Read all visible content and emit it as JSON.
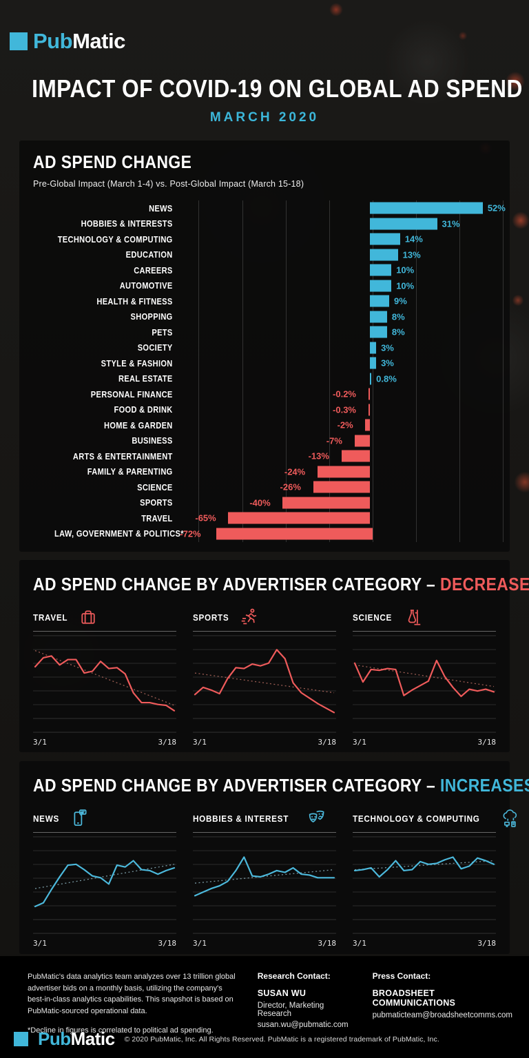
{
  "brand": {
    "pub": "Pub",
    "matic": "Matic"
  },
  "header": {
    "title": "IMPACT OF COVID-19 ON GLOBAL AD SPEND",
    "subtitle": "MARCH 2020"
  },
  "colors": {
    "accent_cyan": "#41b7da",
    "accent_red": "#ef5b5b"
  },
  "bar_section": {
    "title": "AD SPEND CHANGE",
    "subtitle": "Pre-Global Impact (March 1-4) vs. Post-Global Impact (March 15-18)"
  },
  "decreases_section": {
    "title_prefix": "AD SPEND CHANGE BY ADVERTISER CATEGORY –",
    "title_highlight": "DECREASES"
  },
  "increases_section": {
    "title_prefix": "AD SPEND CHANGE BY ADVERTISER CATEGORY –",
    "title_highlight": "INCREASES"
  },
  "chart_data": [
    {
      "type": "bar",
      "orientation": "horizontal",
      "title": "AD SPEND CHANGE",
      "subtitle": "Pre-Global Impact (March 1-4) vs. Post-Global Impact (March 15-18)",
      "unit": "percent change",
      "xlim": [
        -88,
        68
      ],
      "gridlines": [
        -80,
        -60,
        -40,
        -20,
        0,
        20,
        40,
        60
      ],
      "grid": true,
      "categories": [
        "NEWS",
        "HOBBIES & INTERESTS",
        "TECHNOLOGY & COMPUTING",
        "EDUCATION",
        "CAREERS",
        "AUTOMOTIVE",
        "HEALTH & FITNESS",
        "SHOPPING",
        "PETS",
        "SOCIETY",
        "STYLE & FASHION",
        "REAL ESTATE",
        "PERSONAL FINANCE",
        "FOOD & DRINK",
        "HOME & GARDEN",
        "BUSINESS",
        "ARTS & ENTERTAINMENT",
        "FAMILY & PARENTING",
        "SCIENCE",
        "SPORTS",
        "TRAVEL",
        "LAW, GOVERNMENT & POLITICS*"
      ],
      "values": [
        52,
        31,
        14,
        13,
        10,
        10,
        9,
        8,
        8,
        3,
        3,
        0.8,
        -0.2,
        -0.3,
        -2,
        -7,
        -13,
        -24,
        -26,
        -40,
        -65,
        -72
      ],
      "labels": [
        "52%",
        "31%",
        "14%",
        "13%",
        "10%",
        "10%",
        "9%",
        "8%",
        "8%",
        "3%",
        "3%",
        "0.8%",
        "-0.2%",
        "-0.3%",
        "-2%",
        "-7%",
        "-13%",
        "-24%",
        "-26%",
        "-40%",
        "-65%",
        "-72%"
      ],
      "positive_color": "#41b7da",
      "negative_color": "#ef5b5b"
    },
    {
      "type": "line",
      "title": "TRAVEL",
      "group": "decreases",
      "color": "#ef5b5b",
      "trend_color": "#d07a6d",
      "x_start": "3/1",
      "x_end": "3/18",
      "ylim": [
        0,
        100
      ],
      "grid": true,
      "values": [
        73,
        83,
        85,
        75,
        81,
        81,
        66,
        68,
        79,
        71,
        72,
        65,
        44,
        33,
        33,
        31,
        30,
        24
      ],
      "trend": [
        91,
        30
      ]
    },
    {
      "type": "line",
      "title": "SPORTS",
      "group": "decreases",
      "color": "#ef5b5b",
      "trend_color": "#d07a6d",
      "x_start": "3/1",
      "x_end": "3/18",
      "ylim": [
        0,
        100
      ],
      "grid": true,
      "values": [
        42,
        50,
        47,
        43,
        60,
        72,
        71,
        76,
        74,
        77,
        92,
        82,
        55,
        44,
        38,
        32,
        27,
        22
      ],
      "trend": [
        66,
        44
      ]
    },
    {
      "type": "line",
      "title": "SCIENCE",
      "group": "decreases",
      "color": "#ef5b5b",
      "trend_color": "#d07a6d",
      "x_start": "3/1",
      "x_end": "3/18",
      "ylim": [
        0,
        100
      ],
      "grid": true,
      "values": [
        77,
        56,
        70,
        69,
        71,
        70,
        41,
        47,
        52,
        57,
        80,
        62,
        50,
        40,
        48,
        46,
        48,
        45
      ],
      "trend": [
        75,
        51
      ]
    },
    {
      "type": "line",
      "title": "NEWS",
      "group": "increases",
      "color": "#4cb9dc",
      "trend_color": "#9fc9d6",
      "x_start": "3/1",
      "x_end": "3/18",
      "ylim": [
        0,
        100
      ],
      "grid": true,
      "values": [
        30,
        34,
        49,
        63,
        76,
        77,
        71,
        64,
        62,
        55,
        76,
        74,
        81,
        71,
        70,
        66,
        70,
        73
      ],
      "trend": [
        50,
        77
      ]
    },
    {
      "type": "line",
      "title": "HOBBIES & INTEREST",
      "group": "increases",
      "color": "#4cb9dc",
      "trend_color": "#9fc9d6",
      "x_start": "3/1",
      "x_end": "3/18",
      "ylim": [
        0,
        100
      ],
      "grid": true,
      "values": [
        42,
        46,
        50,
        53,
        58,
        70,
        85,
        64,
        63,
        66,
        70,
        68,
        73,
        66,
        65,
        62,
        62,
        62
      ],
      "trend": [
        56,
        71
      ]
    },
    {
      "type": "line",
      "title": "TECHNOLOGY & COMPUTING",
      "group": "increases",
      "color": "#4cb9dc",
      "trend_color": "#9fc9d6",
      "x_start": "3/1",
      "x_end": "3/18",
      "ylim": [
        0,
        100
      ],
      "grid": true,
      "values": [
        70,
        71,
        73,
        63,
        71,
        81,
        70,
        71,
        80,
        77,
        78,
        82,
        85,
        72,
        75,
        84,
        81,
        77
      ],
      "trend": [
        71,
        81
      ]
    }
  ],
  "footer": {
    "about": "PubMatic's data analytics team analyzes over 13 trillion global advertiser bids on a monthly basis, utilizing the company's best-in-class analytics capabilities. This snapshot is based on PubMatic-sourced operational data.",
    "footnote": "*Decline in figures is correlated to political ad spending.",
    "research_contact_label": "Research Contact:",
    "research_name": "SUSAN WU",
    "research_role": "Director, Marketing Research",
    "research_email": "susan.wu@pubmatic.com",
    "press_contact_label": "Press Contact:",
    "press_name": "BROADSHEET COMMUNICATIONS",
    "press_email": "pubmaticteam@broadsheetcomms.com",
    "copyright": "© 2020 PubMatic, Inc. All Rights Reserved. PubMatic is a registered trademark of PubMatic, Inc."
  }
}
